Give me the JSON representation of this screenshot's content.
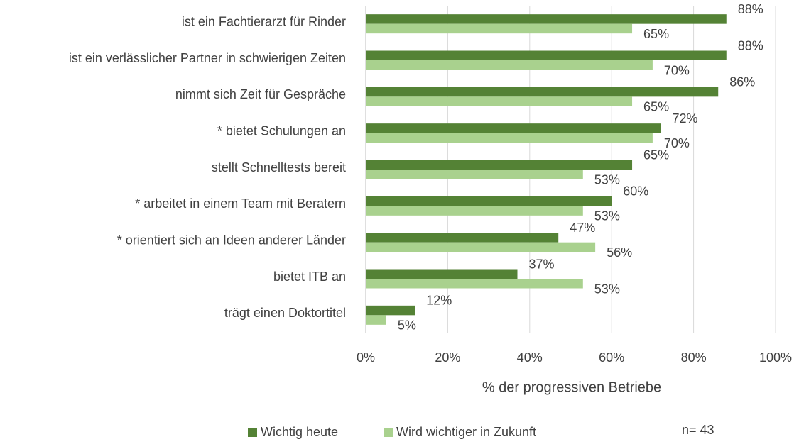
{
  "chart_data": {
    "type": "hbar",
    "categories": [
      "ist ein Fachtierarzt für Rinder",
      "ist ein verlässlicher Partner in schwierigen Zeiten",
      "nimmt sich Zeit für Gespräche",
      "* bietet Schulungen an",
      "stellt Schnelltests bereit",
      "* arbeitet in einem Team mit Beratern",
      "* orientiert sich an Ideen anderer Länder",
      "bietet ITB an",
      "trägt einen Doktortitel"
    ],
    "series": [
      {
        "name": "Wichtig heute",
        "color": "#548235",
        "values": [
          88,
          88,
          86,
          72,
          65,
          60,
          47,
          37,
          12
        ],
        "value_labels": [
          "88%",
          "88%",
          "86%",
          "72%",
          "65%",
          "60%",
          "47%",
          "37%",
          "12%"
        ]
      },
      {
        "name": "Wird wichtiger in Zukunft",
        "color": "#a9d18e",
        "values": [
          65,
          70,
          65,
          70,
          53,
          53,
          56,
          53,
          5
        ],
        "value_labels": [
          "65%",
          "70%",
          "65%",
          "70%",
          "53%",
          "53%",
          "56%",
          "53%",
          "5%"
        ]
      }
    ],
    "xlabel": "% der progressiven Betriebe",
    "xlim": [
      0,
      100
    ],
    "xticks": [
      {
        "value": 0,
        "label": "0%"
      },
      {
        "value": 20,
        "label": "20%"
      },
      {
        "value": 40,
        "label": "40%"
      },
      {
        "value": 60,
        "label": "60%"
      },
      {
        "value": 80,
        "label": "80%"
      },
      {
        "value": 100,
        "label": "100%"
      }
    ],
    "grid": true,
    "legend": "bottom",
    "annotation": "n= 43"
  }
}
